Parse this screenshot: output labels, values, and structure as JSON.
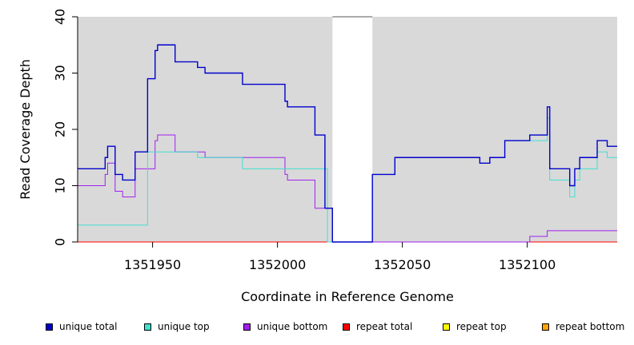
{
  "chart_data": {
    "type": "line",
    "title": "",
    "xlabel": "Coordinate in Reference Genome",
    "ylabel": "Read Coverage Depth",
    "xlim": [
      1351920,
      1352136
    ],
    "ylim": [
      0,
      40
    ],
    "x_ticks": [
      1351950,
      1352000,
      1352050,
      1352100
    ],
    "x_tick_labels": [
      "1351950",
      "1352000",
      "1352050",
      "1352100"
    ],
    "y_ticks": [
      0,
      10,
      20,
      30,
      40
    ],
    "y_tick_labels": [
      "0",
      "10",
      "20",
      "30",
      "40"
    ],
    "background": "#d9d9d9",
    "gap_range": [
      1352022,
      1352038
    ],
    "grid": false,
    "legend_position": "bottom",
    "series": [
      {
        "name": "unique total",
        "color": "#0000cd",
        "steps": [
          [
            1351920,
            13
          ],
          [
            1351931,
            15
          ],
          [
            1351932,
            17
          ],
          [
            1351935,
            12
          ],
          [
            1351938,
            11
          ],
          [
            1351943,
            16
          ],
          [
            1351948,
            29
          ],
          [
            1351951,
            34
          ],
          [
            1351952,
            35
          ],
          [
            1351959,
            32
          ],
          [
            1351968,
            31
          ],
          [
            1351971,
            30
          ],
          [
            1351986,
            28
          ],
          [
            1352003,
            25
          ],
          [
            1352004,
            24
          ],
          [
            1352015,
            19
          ],
          [
            1352019,
            6
          ],
          [
            1352022,
            0
          ],
          [
            1352038,
            12
          ],
          [
            1352047,
            15
          ],
          [
            1352081,
            14
          ],
          [
            1352085,
            15
          ],
          [
            1352091,
            18
          ],
          [
            1352101,
            19
          ],
          [
            1352108,
            24
          ],
          [
            1352109,
            13
          ],
          [
            1352117,
            10
          ],
          [
            1352119,
            13
          ],
          [
            1352121,
            15
          ],
          [
            1352128,
            18
          ],
          [
            1352132,
            17
          ],
          [
            1352136,
            17
          ]
        ]
      },
      {
        "name": "unique top",
        "color": "#40e0d0",
        "steps": [
          [
            1351920,
            3
          ],
          [
            1351948,
            16
          ],
          [
            1351968,
            15
          ],
          [
            1351986,
            13
          ],
          [
            1352020,
            0
          ],
          [
            1352038,
            12
          ],
          [
            1352047,
            15
          ],
          [
            1352081,
            14
          ],
          [
            1352085,
            15
          ],
          [
            1352091,
            18
          ],
          [
            1352101,
            18
          ],
          [
            1352108,
            22
          ],
          [
            1352109,
            11
          ],
          [
            1352117,
            8
          ],
          [
            1352119,
            11
          ],
          [
            1352121,
            13
          ],
          [
            1352128,
            16
          ],
          [
            1352132,
            15
          ],
          [
            1352136,
            15
          ]
        ]
      },
      {
        "name": "unique bottom",
        "color": "#a020f0",
        "steps": [
          [
            1351920,
            10
          ],
          [
            1351931,
            12
          ],
          [
            1351932,
            14
          ],
          [
            1351935,
            9
          ],
          [
            1351938,
            8
          ],
          [
            1351943,
            13
          ],
          [
            1351951,
            18
          ],
          [
            1351952,
            19
          ],
          [
            1351959,
            16
          ],
          [
            1351971,
            15
          ],
          [
            1352003,
            12
          ],
          [
            1352004,
            11
          ],
          [
            1352015,
            6
          ],
          [
            1352022,
            0
          ],
          [
            1352101,
            1
          ],
          [
            1352108,
            2
          ],
          [
            1352136,
            2
          ]
        ]
      },
      {
        "name": "repeat total",
        "color": "#ff0000",
        "steps": [
          [
            1351920,
            0
          ],
          [
            1352136,
            0
          ]
        ]
      },
      {
        "name": "repeat top",
        "color": "#ffff00",
        "steps": [
          [
            1351920,
            0
          ],
          [
            1352136,
            0
          ]
        ]
      },
      {
        "name": "repeat bottom",
        "color": "#ffa500",
        "steps": [
          [
            1351920,
            0
          ],
          [
            1352136,
            0
          ]
        ]
      }
    ]
  }
}
